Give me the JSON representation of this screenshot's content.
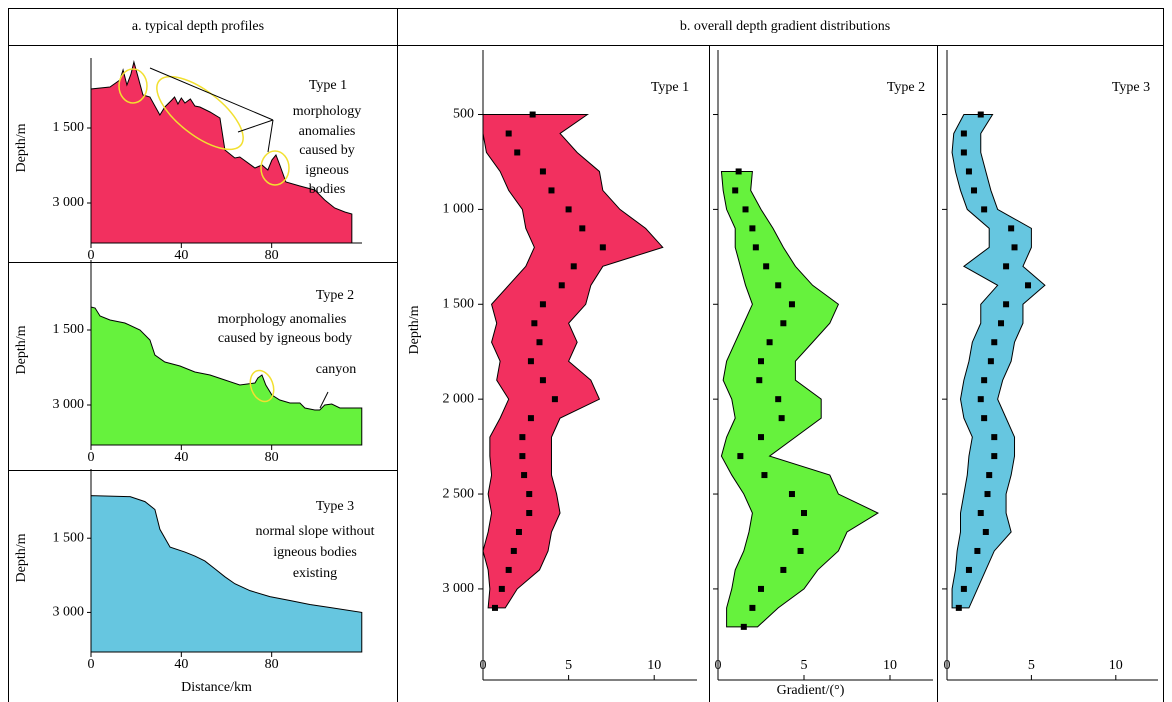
{
  "headers": [
    "a. typical depth profiles",
    "b. overall depth gradient distributions"
  ],
  "chart_data": [
    {
      "type": "area",
      "title": "Type 1",
      "annotation": [
        "morphology",
        "anomalies",
        "caused by",
        "igneous",
        "bodies"
      ],
      "ylabel": "Depth/m",
      "color": "#f2305f",
      "x": [
        0,
        8.4,
        12.8,
        14.2,
        15.9,
        17.7,
        19,
        21.2,
        23,
        26.1,
        30.5,
        32.7,
        35.8,
        37,
        38.5,
        40,
        41.6,
        44,
        46,
        48.2,
        52.7,
        57.1,
        59.3,
        63.7,
        65.9,
        72.6,
        75.7,
        78.3,
        80.1,
        81.9,
        83.6,
        86.3,
        92.5,
        99.1,
        103.5,
        107.9,
        112.4,
        115.5
      ],
      "values": [
        720,
        680,
        540,
        340,
        640,
        420,
        180,
        540,
        840,
        880,
        1240,
        1080,
        940,
        880,
        1020,
        900,
        1000,
        920,
        1060,
        1080,
        1180,
        1300,
        1940,
        2100,
        2080,
        2300,
        2240,
        2340,
        2140,
        2040,
        2240,
        2580,
        2660,
        2740,
        2940,
        3100,
        3180,
        3220
      ],
      "xlim": [
        0,
        120
      ],
      "ylim": [
        3800,
        0
      ],
      "xticks": [
        0,
        40,
        80
      ],
      "yticks": [
        {
          "value": 1500,
          "label": "1 500"
        },
        {
          "value": 3000,
          "label": "3 000"
        }
      ]
    },
    {
      "type": "area",
      "title": "Type 2",
      "annotation": [
        "morphology anomalies",
        "caused by igneous body",
        "canyon"
      ],
      "ylabel": "Depth/m",
      "color": "#66f23d",
      "x": [
        0,
        1.8,
        4,
        8.4,
        15,
        21.7,
        26.1,
        28.3,
        32.7,
        39.4,
        46,
        52.7,
        59.3,
        65.9,
        72.6,
        73.9,
        75.7,
        77.4,
        80.1,
        83.6,
        88.1,
        92.5,
        94.7,
        99.1,
        101.3,
        103.5,
        106.6,
        110.2,
        114.6,
        119.9
      ],
      "values": [
        1040,
        1060,
        1220,
        1300,
        1360,
        1500,
        1700,
        2000,
        2140,
        2220,
        2340,
        2400,
        2500,
        2600,
        2560,
        2460,
        2400,
        2600,
        2800,
        2900,
        2960,
        2960,
        3060,
        3100,
        3100,
        3000,
        2980,
        3060,
        3060,
        3060
      ],
      "xlim": [
        0,
        120
      ],
      "ylim": [
        3800,
        0
      ],
      "xticks": [
        0,
        40,
        80
      ],
      "yticks": [
        {
          "value": 1500,
          "label": "1 500"
        },
        {
          "value": 3000,
          "label": "3 000"
        }
      ]
    },
    {
      "type": "area",
      "title": "Type 3",
      "annotation": [
        "normal slope without",
        "igneous bodies",
        "existing"
      ],
      "ylabel": "Depth/m",
      "xlabel": "Distance/km",
      "color": "#66c6e0",
      "x": [
        0,
        17.3,
        23.9,
        28.3,
        30.5,
        35,
        41.6,
        46,
        50.4,
        54.9,
        59.3,
        63.7,
        70.4,
        79.2,
        88.1,
        96.9,
        105.8,
        119.9
      ],
      "values": [
        640,
        660,
        760,
        920,
        1320,
        1680,
        1780,
        1860,
        1960,
        2120,
        2280,
        2420,
        2560,
        2680,
        2760,
        2840,
        2900,
        3000
      ],
      "xlim": [
        0,
        120
      ],
      "ylim": [
        3800,
        0
      ],
      "xticks": [
        0,
        40,
        80
      ],
      "yticks": [
        {
          "value": 1500,
          "label": "1 500"
        },
        {
          "value": 3000,
          "label": "3 000"
        }
      ]
    },
    {
      "type": "band",
      "title": "Type 1",
      "ylabel": "Depth/m",
      "color": "#f2305f",
      "depth": [
        500,
        600,
        700,
        800,
        900,
        1000,
        1100,
        1200,
        1300,
        1400,
        1500,
        1600,
        1700,
        1800,
        1900,
        2000,
        2100,
        2200,
        2300,
        2400,
        2500,
        2600,
        2700,
        2800,
        2900,
        3000,
        3100
      ],
      "min": [
        0,
        0,
        0.2,
        1.0,
        1.5,
        2.3,
        2.5,
        3.0,
        2.5,
        1.5,
        0.5,
        0.8,
        0.5,
        1.0,
        0.8,
        1.5,
        1.0,
        0.4,
        0.4,
        0.5,
        0.3,
        0.5,
        0.3,
        0,
        0.3,
        0.4,
        0.3
      ],
      "mean": [
        2.9,
        1.5,
        2.0,
        3.5,
        4.0,
        5.0,
        5.8,
        7.0,
        5.3,
        4.6,
        3.5,
        3.0,
        3.3,
        2.8,
        3.5,
        4.2,
        2.8,
        2.3,
        2.3,
        2.4,
        2.7,
        2.7,
        2.1,
        1.8,
        1.5,
        1.1,
        0.7
      ],
      "max": [
        6.1,
        4.5,
        5.5,
        6.8,
        7.0,
        8.0,
        9.5,
        10.5,
        7.0,
        6.3,
        6.0,
        5.0,
        5.5,
        5.0,
        6.3,
        6.8,
        4.5,
        4.0,
        4.0,
        4.0,
        4.3,
        4.5,
        4.0,
        3.8,
        3.3,
        2.0,
        1.3
      ],
      "xlim": [
        0,
        12.5
      ],
      "ylim": [
        3480,
        160
      ],
      "xticks": [
        0,
        5,
        10
      ],
      "yticks": [
        500,
        {
          "value": 1000,
          "label": "1 000"
        },
        {
          "value": 1500,
          "label": "1 500"
        },
        {
          "value": 2000,
          "label": "2 000"
        },
        {
          "value": 2500,
          "label": "2 500"
        },
        {
          "value": 3000,
          "label": "3 000"
        }
      ]
    },
    {
      "type": "band",
      "title": "Type 2",
      "xlabel": "Gradient/(°)",
      "color": "#66f23d",
      "depth": [
        800,
        900,
        1000,
        1100,
        1200,
        1300,
        1400,
        1500,
        1600,
        1700,
        1800,
        1900,
        2000,
        2100,
        2200,
        2300,
        2400,
        2500,
        2600,
        2700,
        2800,
        2900,
        3000,
        3100,
        3200
      ],
      "min": [
        0.2,
        0.3,
        0.5,
        1.0,
        1.0,
        1.3,
        1.6,
        2.0,
        1.5,
        1.0,
        0.5,
        0.3,
        0.8,
        1.0,
        0.5,
        0.2,
        0.8,
        1.5,
        2.0,
        1.8,
        1.5,
        1.0,
        0.8,
        0.5,
        0.5
      ],
      "mean": [
        1.2,
        1.0,
        1.6,
        2.0,
        2.2,
        2.8,
        3.5,
        4.3,
        3.8,
        3.0,
        2.5,
        2.4,
        3.5,
        3.7,
        2.5,
        1.3,
        2.7,
        4.3,
        5.0,
        4.5,
        4.8,
        3.8,
        2.5,
        2.0,
        1.5
      ],
      "max": [
        2.0,
        1.9,
        2.5,
        3.2,
        3.8,
        4.5,
        5.5,
        7.0,
        6.5,
        5.5,
        4.5,
        4.5,
        6.0,
        6.0,
        4.5,
        3.0,
        6.5,
        7.0,
        9.3,
        7.5,
        7.0,
        5.8,
        5.0,
        3.5,
        2.3
      ],
      "xlim": [
        0,
        12.5
      ],
      "ylim": [
        3480,
        160
      ],
      "xticks": [
        0,
        5,
        10
      ]
    },
    {
      "type": "band",
      "title": "Type 3",
      "color": "#66c6e0",
      "depth": [
        500,
        600,
        700,
        800,
        900,
        1000,
        1100,
        1200,
        1300,
        1400,
        1500,
        1600,
        1700,
        1800,
        1900,
        2000,
        2100,
        2200,
        2300,
        2400,
        2500,
        2600,
        2700,
        2800,
        2900,
        3000,
        3100
      ],
      "min": [
        1.0,
        0.4,
        0.3,
        0.5,
        0.8,
        1.2,
        2.5,
        2.5,
        1.0,
        3.0,
        2.0,
        2.0,
        1.5,
        1.3,
        1.0,
        0.8,
        1.0,
        1.5,
        1.3,
        1.2,
        1.0,
        0.8,
        0.8,
        0.6,
        0.5,
        0.3,
        0.3
      ],
      "mean": [
        2.0,
        1.0,
        1.0,
        1.3,
        1.6,
        2.2,
        3.8,
        4.0,
        3.5,
        4.8,
        3.5,
        3.2,
        2.8,
        2.6,
        2.2,
        2.0,
        2.2,
        2.8,
        2.8,
        2.5,
        2.4,
        2.0,
        2.3,
        1.8,
        1.3,
        1.0,
        0.7
      ],
      "max": [
        2.7,
        2.0,
        2.0,
        2.3,
        2.6,
        3.0,
        5.0,
        5.0,
        4.5,
        5.8,
        4.5,
        4.5,
        4.0,
        3.8,
        3.3,
        3.0,
        3.5,
        4.0,
        4.0,
        3.8,
        3.5,
        3.5,
        3.8,
        2.8,
        2.3,
        1.8,
        1.3
      ],
      "xlim": [
        0,
        12.5
      ],
      "ylim": [
        3480,
        160
      ],
      "xticks": [
        0,
        5,
        10
      ]
    }
  ]
}
